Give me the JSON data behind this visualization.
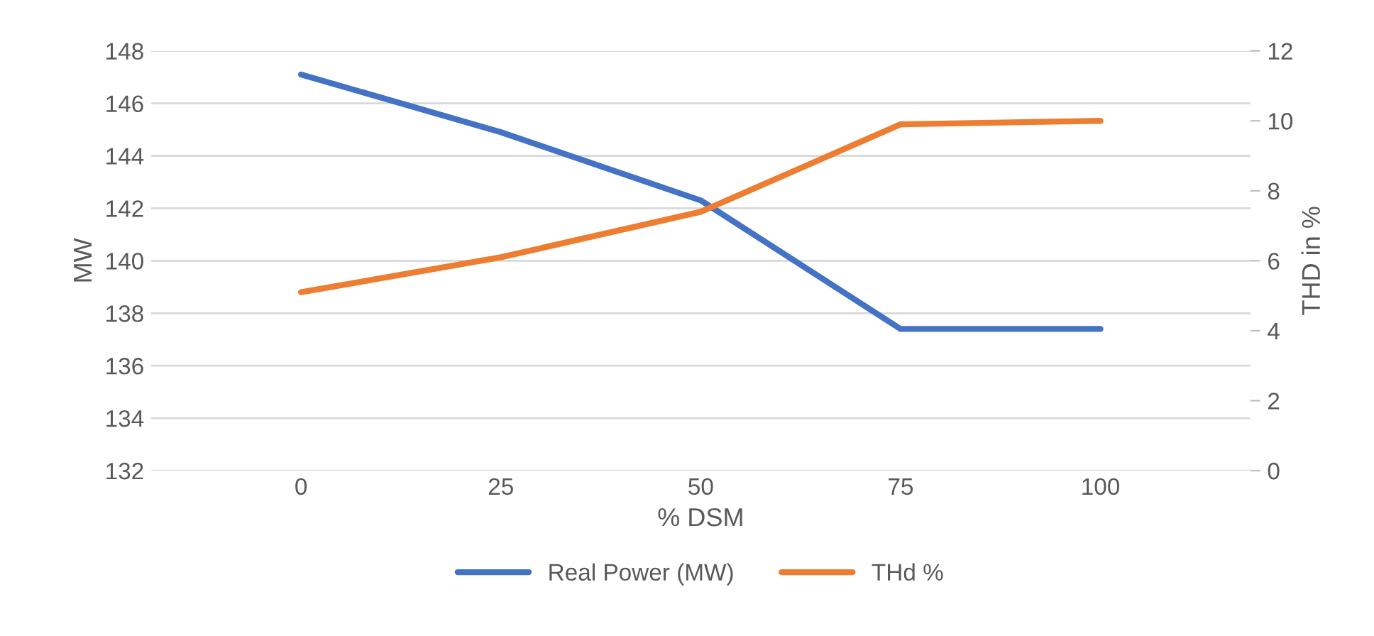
{
  "chart_data": {
    "type": "line",
    "xlabel": "% DSM",
    "ylabel": "MW",
    "y2label": "THD in %",
    "categories": [
      "0",
      "25",
      "50",
      "75",
      "100"
    ],
    "series": [
      {
        "name": "Real Power (MW)",
        "color": "#4472c4",
        "values": [
          147.1,
          144.9,
          142.3,
          137.4,
          137.4
        ]
      },
      {
        "name": "THd %",
        "color": "#ed7d31",
        "axis": "y2",
        "values": [
          5.1,
          6.1,
          7.4,
          9.9,
          10.0
        ]
      }
    ],
    "ylim": [
      132,
      148
    ],
    "yticks": [
      132,
      134,
      136,
      138,
      140,
      142,
      144,
      146,
      148
    ],
    "y2lim": [
      0,
      12
    ],
    "y2ticks": [
      0,
      2,
      4,
      6,
      8,
      10,
      12
    ],
    "grid": "y",
    "legend": "bottom",
    "marker": "none",
    "line_style": "solid"
  }
}
